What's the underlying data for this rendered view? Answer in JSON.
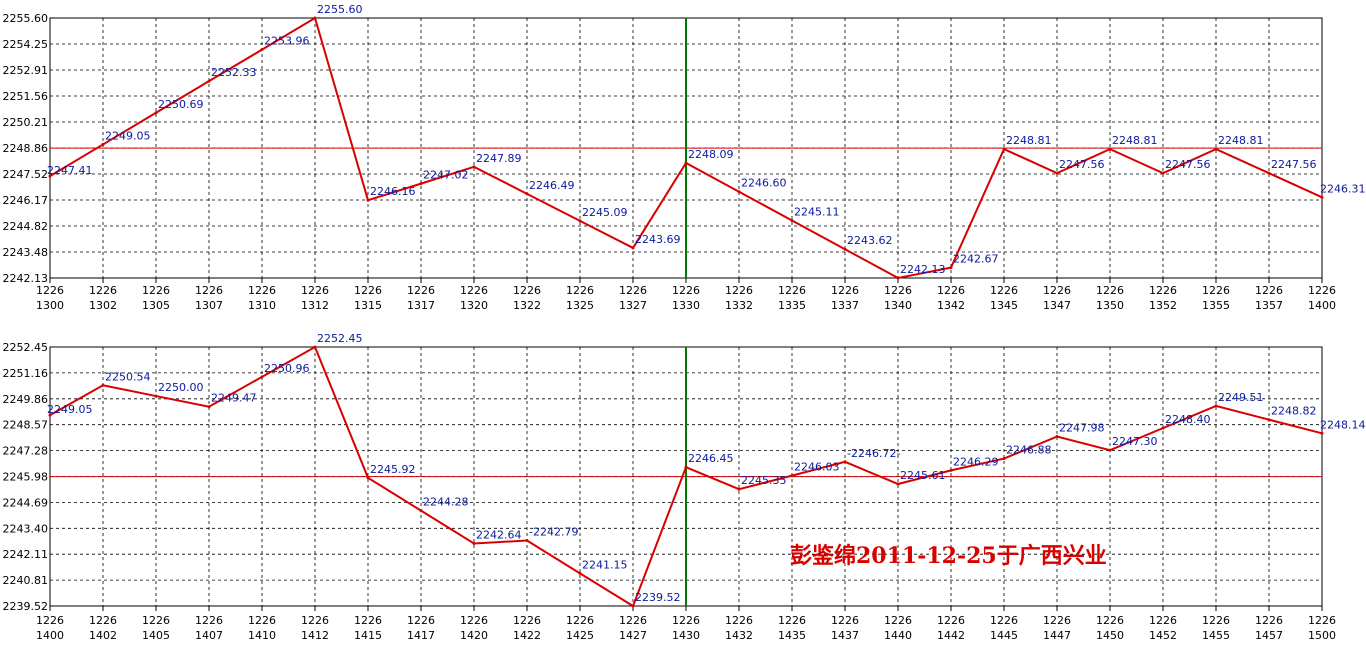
{
  "chart_data": [
    {
      "type": "line",
      "x": [
        [
          "1226",
          "1300"
        ],
        [
          "1226",
          "1302"
        ],
        [
          "1226",
          "1305"
        ],
        [
          "1226",
          "1307"
        ],
        [
          "1226",
          "1310"
        ],
        [
          "1226",
          "1312"
        ],
        [
          "1226",
          "1315"
        ],
        [
          "1226",
          "1317"
        ],
        [
          "1226",
          "1320"
        ],
        [
          "1226",
          "1322"
        ],
        [
          "1226",
          "1325"
        ],
        [
          "1226",
          "1327"
        ],
        [
          "1226",
          "1330"
        ],
        [
          "1226",
          "1332"
        ],
        [
          "1226",
          "1335"
        ],
        [
          "1226",
          "1337"
        ],
        [
          "1226",
          "1340"
        ],
        [
          "1226",
          "1342"
        ],
        [
          "1226",
          "1345"
        ],
        [
          "1226",
          "1347"
        ],
        [
          "1226",
          "1350"
        ],
        [
          "1226",
          "1352"
        ],
        [
          "1226",
          "1355"
        ],
        [
          "1226",
          "1357"
        ],
        [
          "1226",
          "1400"
        ]
      ],
      "values": [
        2247.41,
        2249.05,
        2250.69,
        2252.33,
        2253.96,
        2255.6,
        2246.16,
        2247.02,
        2247.89,
        2246.49,
        2245.09,
        2243.69,
        2248.09,
        2246.6,
        2245.11,
        2243.62,
        2242.13,
        2242.67,
        2248.81,
        2247.56,
        2248.81,
        2247.56,
        2248.81,
        2247.56,
        2246.31
      ],
      "point_labels": [
        "2247.41",
        "2249.05",
        "2250.69",
        "2252.33",
        "2253.96",
        "2255.60",
        "2246.16",
        "2247.02",
        "2247.89",
        "2246.49",
        "2245.09",
        "2243.69",
        "2248.09",
        "2246.60",
        "2245.11",
        "2243.62",
        "2242.13",
        "2242.67",
        "2248.81",
        "2247.56",
        "2248.81",
        "2247.56",
        "2248.81",
        "2247.56",
        "2246.31"
      ],
      "yticks": [
        "2255.60",
        "2254.25",
        "2252.91",
        "2251.56",
        "2250.21",
        "2248.86",
        "2247.52",
        "2246.17",
        "2244.82",
        "2243.48",
        "2242.13"
      ],
      "ylim": [
        2242.13,
        2255.6
      ],
      "reference_line": 2248.86,
      "marker_index": 12,
      "grid": true
    },
    {
      "type": "line",
      "x": [
        [
          "1226",
          "1400"
        ],
        [
          "1226",
          "1402"
        ],
        [
          "1226",
          "1405"
        ],
        [
          "1226",
          "1407"
        ],
        [
          "1226",
          "1410"
        ],
        [
          "1226",
          "1412"
        ],
        [
          "1226",
          "1415"
        ],
        [
          "1226",
          "1417"
        ],
        [
          "1226",
          "1420"
        ],
        [
          "1226",
          "1422"
        ],
        [
          "1226",
          "1425"
        ],
        [
          "1226",
          "1427"
        ],
        [
          "1226",
          "1430"
        ],
        [
          "1226",
          "1432"
        ],
        [
          "1226",
          "1435"
        ],
        [
          "1226",
          "1437"
        ],
        [
          "1226",
          "1440"
        ],
        [
          "1226",
          "1442"
        ],
        [
          "1226",
          "1445"
        ],
        [
          "1226",
          "1447"
        ],
        [
          "1226",
          "1450"
        ],
        [
          "1226",
          "1452"
        ],
        [
          "1226",
          "1455"
        ],
        [
          "1226",
          "1457"
        ],
        [
          "1226",
          "1500"
        ]
      ],
      "values": [
        2249.05,
        2250.54,
        2250.0,
        2249.47,
        2250.96,
        2252.45,
        2245.92,
        2244.28,
        2242.64,
        2242.79,
        2241.15,
        2239.52,
        2246.45,
        2245.35,
        2246.03,
        2246.72,
        2245.61,
        2246.29,
        2246.88,
        2247.98,
        2247.3,
        2248.4,
        2249.51,
        2248.82,
        2248.14
      ],
      "point_labels": [
        "2249.05",
        "2250.54",
        "2250.00",
        "2249.47",
        "2250.96",
        "2252.45",
        "2245.92",
        "2244.28",
        "2242.64",
        "-2242.79",
        "2241.15",
        "2239.52",
        "2246.45",
        "2245.35",
        "2246.03",
        "-2246.72-",
        "2245.61",
        "2246.29",
        "2246.88",
        "2247.98",
        "2247.30",
        "2248.40",
        "2249.51",
        "2248.82",
        "2248.14"
      ],
      "yticks": [
        "2252.45",
        "2251.16",
        "2249.86",
        "2248.57",
        "2247.28",
        "2245.98",
        "2244.69",
        "2243.40",
        "2242.11",
        "2240.81",
        "2239.52"
      ],
      "ylim": [
        2239.52,
        2252.45
      ],
      "reference_line": 2245.98,
      "marker_index": 12,
      "grid": true
    }
  ],
  "watermark": "彭鉴绵2011-12-25于广西兴业",
  "colors": {
    "series": "#d90000",
    "point_label": "#0a1a9c",
    "marker": "#007a00"
  }
}
